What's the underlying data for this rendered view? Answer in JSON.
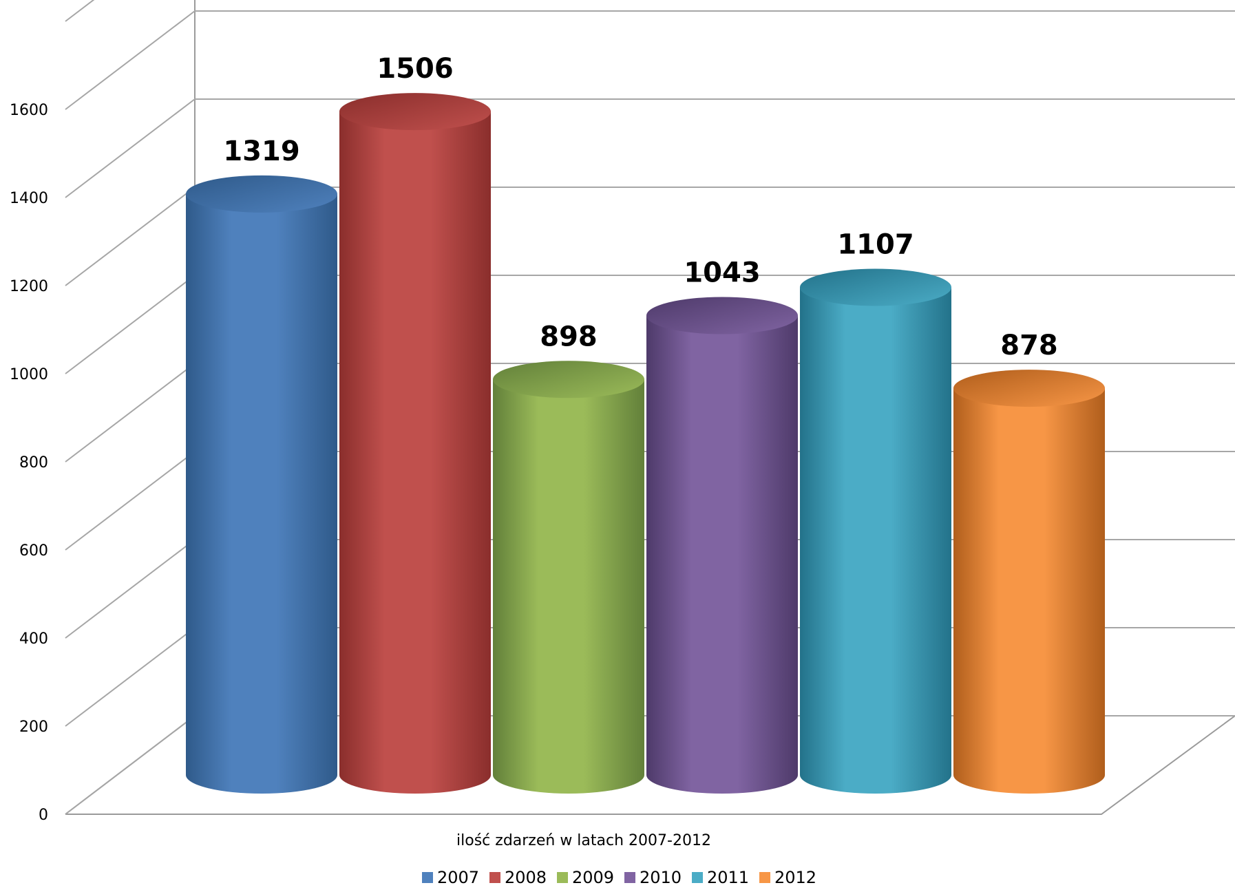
{
  "chart_data": {
    "type": "bar",
    "style": "3d-cylinder",
    "categories": [
      "2007",
      "2008",
      "2009",
      "2010",
      "2011",
      "2012"
    ],
    "values": [
      1319,
      1506,
      898,
      1043,
      1107,
      878
    ],
    "series": [
      {
        "name": "2007",
        "value": 1319,
        "color": "#4F81BD",
        "dark": "#2F5A8A"
      },
      {
        "name": "2008",
        "value": 1506,
        "color": "#C0504D",
        "dark": "#8A2E2C"
      },
      {
        "name": "2009",
        "value": 898,
        "color": "#9BBB59",
        "dark": "#62803A"
      },
      {
        "name": "2010",
        "value": 1043,
        "color": "#8064A2",
        "dark": "#4E3A6A"
      },
      {
        "name": "2011",
        "value": 1107,
        "color": "#4BACC6",
        "dark": "#23728A"
      },
      {
        "name": "2012",
        "value": 878,
        "color": "#F79646",
        "dark": "#B05E1C"
      }
    ],
    "y_ticks": [
      "0",
      "200",
      "400",
      "600",
      "800",
      "1000",
      "1200",
      "1400",
      "1600"
    ],
    "ylim": [
      0,
      1800
    ],
    "xlabel": "ilość zdarzeń w latach 2007-2012",
    "ylabel": "",
    "title": "",
    "grid": true,
    "legend": "bottom"
  }
}
